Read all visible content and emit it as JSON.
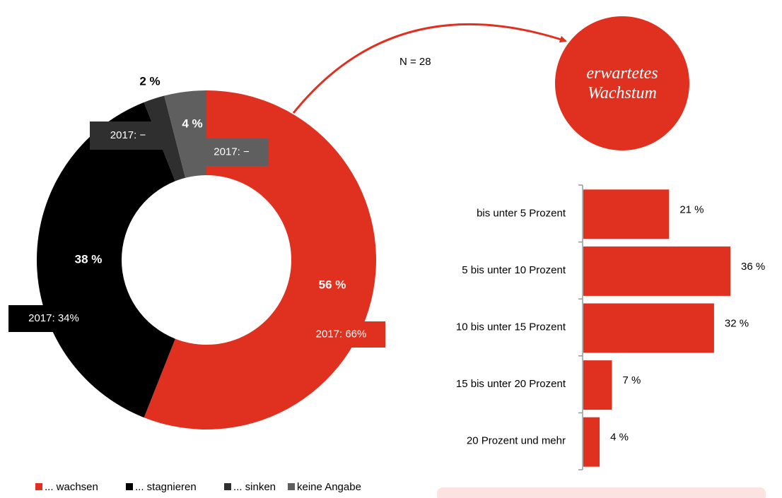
{
  "chart_data": [
    {
      "type": "donut",
      "categories": [
        "... wachsen",
        "... stagnieren",
        "... sinken",
        "keine Angabe"
      ],
      "values": [
        56,
        38,
        2,
        4
      ],
      "value_labels": [
        "56 %",
        "38 %",
        "2 %",
        "4 %"
      ],
      "annotations": [
        "2017: 66%",
        "2017: 34%",
        "2017: −",
        "2017: −"
      ],
      "colors": [
        "#e03120",
        "#000000",
        "#2f2f2f",
        "#5f5f5f"
      ],
      "note": "N = 28",
      "legend": "bottom"
    },
    {
      "type": "bar",
      "orientation": "horizontal",
      "title": "erwartetes Wachstum",
      "categories": [
        "bis unter 5 Prozent",
        "5 bis unter 10 Prozent",
        "10 bis unter 15 Prozent",
        "15 bis unter 20 Prozent",
        "20 Prozent und mehr"
      ],
      "values": [
        21,
        36,
        32,
        7,
        4
      ],
      "value_labels": [
        "21 %",
        "36 %",
        "32 %",
        "7 %",
        "4 %"
      ],
      "color": "#e03120"
    }
  ]
}
